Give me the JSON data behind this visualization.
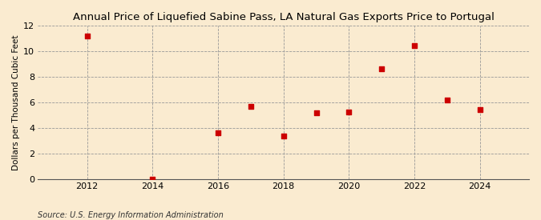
{
  "title": "Annual Price of Liquefied Sabine Pass, LA Natural Gas Exports Price to Portugal",
  "ylabel": "Dollars per Thousand Cubic Feet",
  "source": "Source: U.S. Energy Information Administration",
  "x": [
    2012,
    2014,
    2016,
    2017,
    2018,
    2019,
    2020,
    2021,
    2022,
    2023,
    2024
  ],
  "y": [
    11.2,
    0.02,
    3.6,
    5.65,
    3.35,
    5.15,
    5.25,
    8.6,
    10.45,
    6.15,
    5.45
  ],
  "marker_color": "#cc0000",
  "marker_size": 18,
  "marker_style": "s",
  "xlim": [
    2010.5,
    2025.5
  ],
  "ylim": [
    0,
    12
  ],
  "yticks": [
    0,
    2,
    4,
    6,
    8,
    10,
    12
  ],
  "xticks": [
    2012,
    2014,
    2016,
    2018,
    2020,
    2022,
    2024
  ],
  "background_color": "#faebd0",
  "grid_color": "#999999",
  "title_fontsize": 9.5,
  "label_fontsize": 7.5,
  "tick_fontsize": 8,
  "source_fontsize": 7
}
